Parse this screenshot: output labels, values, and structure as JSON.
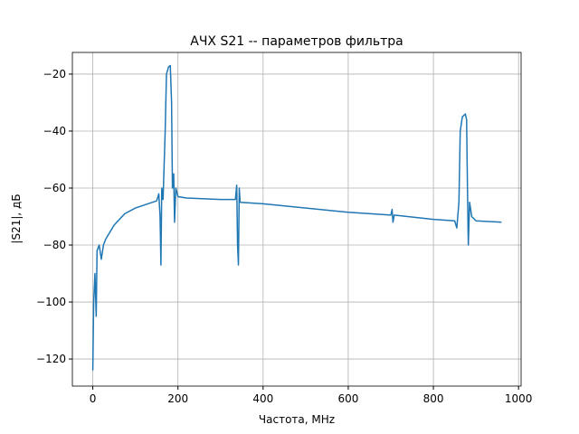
{
  "chart_data": {
    "type": "line",
    "title": "АЧХ S21 -- параметров фильтра",
    "x_label": "Частота, MHz",
    "y_label": "|S21|, дБ",
    "x": [
      0,
      2,
      5,
      8,
      10,
      15,
      20,
      25,
      30,
      50,
      75,
      100,
      130,
      150,
      155,
      158,
      160,
      162,
      165,
      170,
      173,
      178,
      182,
      185,
      187,
      190,
      192,
      195,
      200,
      220,
      300,
      335,
      338,
      340,
      342,
      344,
      346,
      400,
      600,
      700,
      703,
      705,
      708,
      800,
      850,
      855,
      860,
      863,
      868,
      875,
      878,
      880,
      882,
      885,
      890,
      900,
      960
    ],
    "values": [
      -124,
      -100,
      -90,
      -105,
      -82,
      -80,
      -85,
      -80,
      -78,
      -73,
      -69,
      -67,
      -65.5,
      -64.5,
      -62,
      -70,
      -87,
      -60,
      -64,
      -40,
      -20,
      -17.5,
      -17,
      -30,
      -60,
      -55,
      -72,
      -60,
      -63,
      -63.5,
      -64,
      -64,
      -59,
      -80,
      -87,
      -60,
      -65,
      -65.5,
      -68.5,
      -69.5,
      -67.5,
      -72,
      -69.5,
      -71,
      -71.5,
      -74,
      -65,
      -40,
      -35,
      -34,
      -36,
      -60,
      -80,
      -65,
      -70,
      -71.5,
      -72
    ],
    "color": "#1f77b4",
    "xlim": [
      -48,
      1006
    ],
    "xticks": [
      0,
      200,
      400,
      600,
      800,
      1000
    ],
    "ylim": [
      -129.5,
      -12.4
    ],
    "yticks": [
      {
        "value": -120,
        "label": "−120"
      },
      {
        "value": -100,
        "label": "−100"
      },
      {
        "value": -80,
        "label": "−80"
      },
      {
        "value": -60,
        "label": "−60"
      },
      {
        "value": -40,
        "label": "−40"
      },
      {
        "value": -20,
        "label": "−20"
      }
    ],
    "grid": true
  }
}
